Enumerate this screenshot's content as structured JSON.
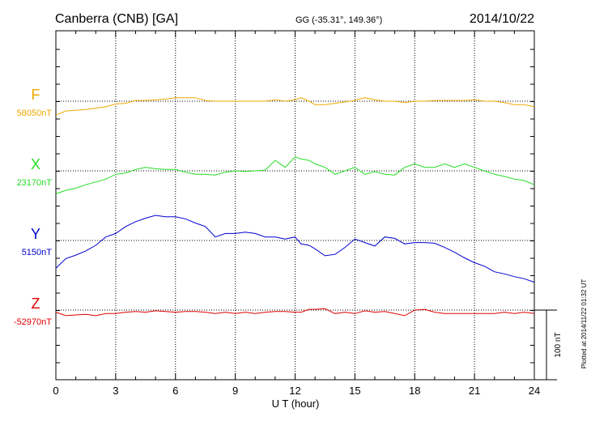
{
  "header": {
    "station": "Canberra (CNB)  [GA]",
    "coords": "GG (-35.31°, 149.36°)",
    "date": "2014/10/22"
  },
  "side_note": "Plotted at 2014/11/22 01:32 UT",
  "scale_bar": {
    "label": "100 nT",
    "value_nT": 100
  },
  "chart_data": {
    "type": "line",
    "title": "Canberra (CNB)  [GA]",
    "xlabel": "U T (hour)",
    "xlim": [
      0,
      24
    ],
    "xticks": [
      0,
      3,
      6,
      9,
      12,
      15,
      18,
      21,
      24
    ],
    "grid": true,
    "series": [
      {
        "name": "F",
        "baseline_label": "58050nT",
        "baseline_nT": 58050,
        "color": "#f0a800",
        "x": [
          0,
          0.5,
          1,
          1.5,
          2,
          2.5,
          3,
          3.5,
          4,
          4.5,
          5,
          5.5,
          6,
          6.5,
          7,
          7.5,
          8,
          8.5,
          9,
          9.5,
          10,
          10.5,
          11,
          11.5,
          12,
          12.3,
          12.7,
          13,
          13.5,
          14,
          14.5,
          15,
          15.5,
          16,
          16.5,
          17,
          17.5,
          18,
          18.5,
          19,
          19.5,
          20,
          20.5,
          21,
          21.5,
          22,
          22.5,
          23,
          23.5,
          24
        ],
        "y": [
          -20,
          -14,
          -13,
          -12,
          -10,
          -8,
          -4,
          -3,
          1,
          1,
          2,
          3,
          5,
          5,
          5,
          1,
          0,
          0,
          0,
          0,
          0,
          0,
          2,
          0,
          2,
          5,
          0,
          -5,
          -5,
          -3,
          -1,
          1,
          5,
          2,
          0,
          0,
          -2,
          0,
          0,
          1,
          1,
          1,
          1,
          2,
          0,
          0,
          -2,
          -5,
          -5,
          -8
        ]
      },
      {
        "name": "X",
        "baseline_label": "23170nT",
        "baseline_nT": 23170,
        "color": "#22dd22",
        "x": [
          0,
          0.5,
          1,
          1.5,
          2,
          2.5,
          3,
          3.5,
          4,
          4.5,
          5,
          5.5,
          6,
          6.5,
          7,
          7.5,
          8,
          8.5,
          9,
          9.5,
          10,
          10.5,
          11,
          11.5,
          12,
          12.3,
          12.7,
          13,
          13.5,
          14,
          14.5,
          15,
          15.5,
          16,
          16.5,
          17,
          17.5,
          18,
          18.5,
          19,
          19.5,
          20,
          20.5,
          21,
          21.5,
          22,
          22.5,
          23,
          23.5,
          24
        ],
        "y": [
          -33,
          -28,
          -25,
          -20,
          -16,
          -12,
          -5,
          -3,
          2,
          5,
          3,
          2,
          2,
          -2,
          -5,
          -5,
          -6,
          -2,
          0,
          -1,
          0,
          1,
          15,
          5,
          20,
          17,
          15,
          10,
          5,
          -5,
          0,
          5,
          -5,
          -1,
          -5,
          -6,
          5,
          10,
          5,
          5,
          10,
          5,
          10,
          5,
          0,
          -5,
          -8,
          -12,
          -14,
          -20
        ]
      },
      {
        "name": "Y",
        "baseline_label": "5150nT",
        "baseline_nT": 5150,
        "color": "#0000d0",
        "x": [
          0,
          0.5,
          1,
          1.5,
          2,
          2.5,
          3,
          3.5,
          4,
          4.5,
          5,
          5.5,
          6,
          6.5,
          7,
          7.5,
          8,
          8.5,
          9,
          9.5,
          10,
          10.5,
          11,
          11.5,
          12,
          12.3,
          12.7,
          13,
          13.5,
          14,
          14.5,
          15,
          15.5,
          16,
          16.5,
          17,
          17.5,
          18,
          18.5,
          19,
          19.5,
          20,
          20.5,
          21,
          21.5,
          22,
          22.5,
          23,
          23.5,
          24
        ],
        "y": [
          -40,
          -26,
          -21,
          -15,
          -7,
          5,
          10,
          20,
          27,
          32,
          36,
          34,
          34,
          31,
          25,
          20,
          5,
          10,
          10,
          12,
          10,
          5,
          5,
          2,
          5,
          -5,
          -7,
          -12,
          -22,
          -20,
          -10,
          2,
          -3,
          -8,
          5,
          3,
          -5,
          -3,
          -3,
          -4,
          -10,
          -17,
          -25,
          -32,
          -37,
          -45,
          -48,
          -52,
          -55,
          -60
        ]
      },
      {
        "name": "Z",
        "baseline_label": "-52970nT",
        "baseline_nT": -52970,
        "color": "#e00000",
        "x": [
          0,
          0.5,
          1,
          1.5,
          2,
          2.5,
          3,
          3.5,
          4,
          4.5,
          5,
          5.5,
          6,
          6.5,
          7,
          7.5,
          8,
          8.5,
          9,
          9.5,
          10,
          10.5,
          11,
          11.5,
          12,
          12.3,
          12.7,
          13,
          13.5,
          14,
          14.5,
          15,
          15.5,
          16,
          16.5,
          17,
          17.5,
          18,
          18.5,
          19,
          19.5,
          20,
          20.5,
          21,
          21.5,
          22,
          22.5,
          23,
          23.5,
          24
        ],
        "y": [
          -3,
          -8,
          -7,
          -6,
          -8,
          -5,
          -5,
          -3,
          -2,
          -3,
          -1,
          -2,
          -3,
          -2,
          -2,
          -3,
          -5,
          -3,
          -5,
          -3,
          -5,
          -3,
          -2,
          -2,
          -3,
          -3,
          1,
          1,
          2,
          -5,
          -3,
          -5,
          -1,
          -3,
          -2,
          -5,
          -8,
          0,
          1,
          -3,
          -5,
          -5,
          -5,
          -5,
          -5,
          -5,
          -3,
          -5,
          -3,
          -5
        ]
      }
    ]
  }
}
